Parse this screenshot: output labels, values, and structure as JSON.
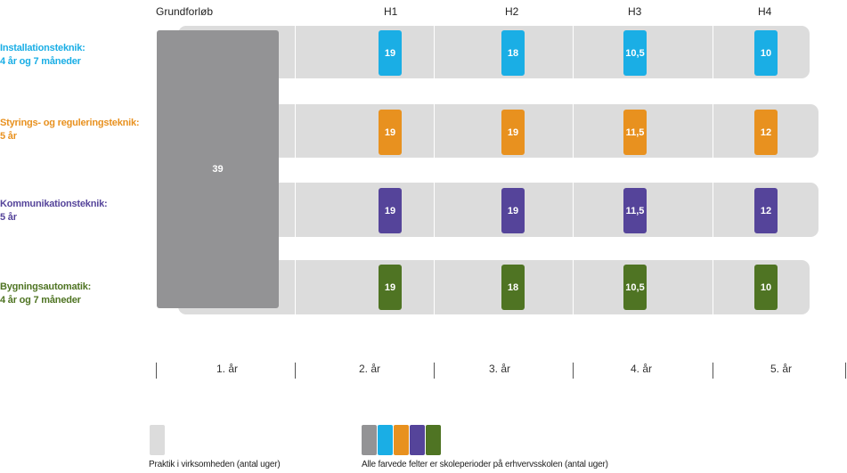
{
  "columns": {
    "grundforloeb": "Grundforløb",
    "h1": "H1",
    "h2": "H2",
    "h3": "H3",
    "h4": "H4"
  },
  "grundforloeb_value": "39",
  "colors": {
    "grundforloeb": "#939395",
    "track": "#dcdcdc",
    "installation": "#1aaee5",
    "styring": "#e8911f",
    "kommunikation": "#55449a",
    "bygning": "#4f7423"
  },
  "rows": [
    {
      "title": "Installationsteknik:",
      "duration": "4 år og 7 måneder",
      "h1": "19",
      "h2": "18",
      "h3": "10,5",
      "h4": "10"
    },
    {
      "title": "Styrings- og reguleringsteknik:",
      "duration": "5 år",
      "h1": "19",
      "h2": "19",
      "h3": "11,5",
      "h4": "12"
    },
    {
      "title": "Kommunikationsteknik:",
      "duration": "5 år",
      "h1": "19",
      "h2": "19",
      "h3": "11,5",
      "h4": "12"
    },
    {
      "title": "Bygningsautomatik:",
      "duration": "4 år og 7 måneder",
      "h1": "19",
      "h2": "18",
      "h3": "10,5",
      "h4": "10"
    }
  ],
  "years": [
    "1. år",
    "2. år",
    "3. år",
    "4. år",
    "5. år"
  ],
  "legend": {
    "practice": "Praktik i virksomheden (antal uger)",
    "school": "Alle farvede felter er skoleperioder på erhvervsskolen (antal uger)"
  }
}
